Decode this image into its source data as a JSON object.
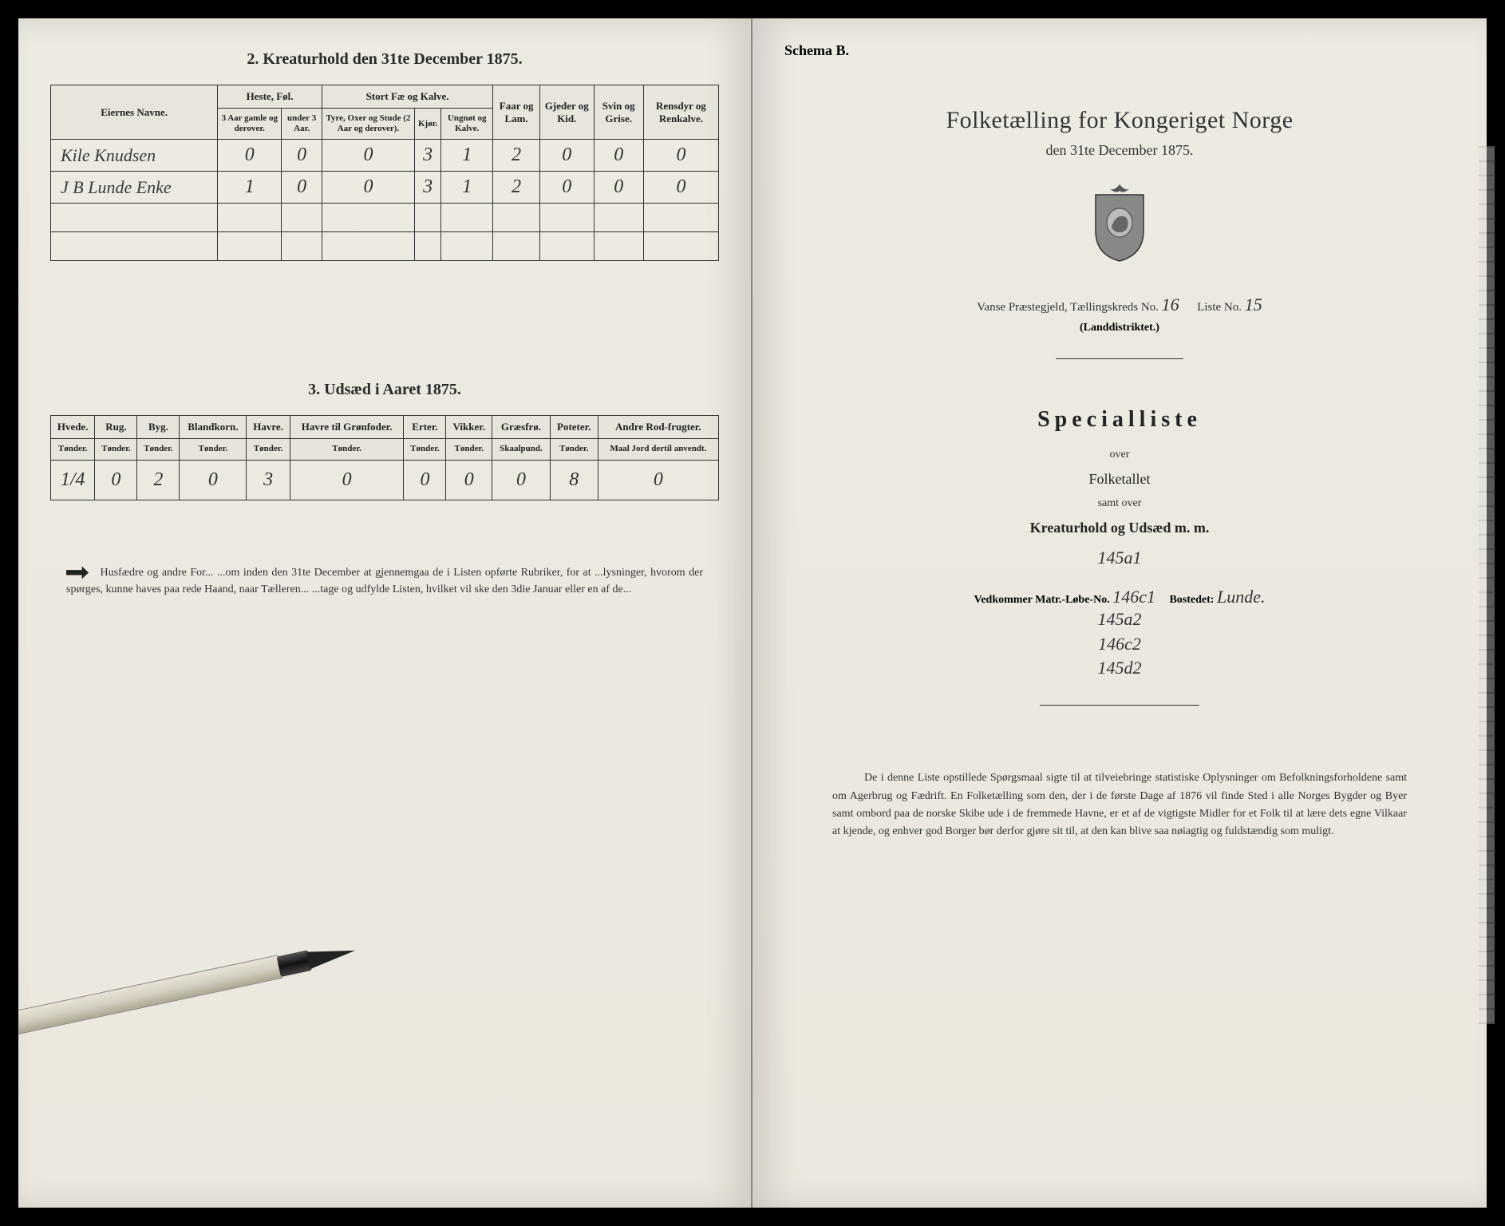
{
  "left": {
    "section2_title": "2. Kreaturhold den 31te December 1875.",
    "table2": {
      "headers": {
        "names": "Eiernes Navne.",
        "heste": "Heste, Føl.",
        "heste_sub1": "3 Aar gamle og derover.",
        "heste_sub2": "under 3 Aar.",
        "stort": "Stort Fæ og Kalve.",
        "stort_sub1": "Tyre, Oxer og Stude (2 Aar og derover).",
        "stort_sub2": "Kjør.",
        "stort_sub3": "Ungnøt og Kalve.",
        "faar": "Faar og Lam.",
        "gjeder": "Gjeder og Kid.",
        "svin": "Svin og Grise.",
        "rens": "Rensdyr og Renkalve."
      },
      "rows": [
        {
          "name": "Kile Knudsen",
          "v": [
            "0",
            "0",
            "0",
            "3",
            "1",
            "2",
            "0",
            "0",
            "0"
          ]
        },
        {
          "name": "J B Lunde Enke",
          "v": [
            "1",
            "0",
            "0",
            "3",
            "1",
            "2",
            "0",
            "0",
            "0"
          ]
        }
      ]
    },
    "section3_title": "3. Udsæd i Aaret 1875.",
    "table3": {
      "headers": [
        "Hvede.",
        "Rug.",
        "Byg.",
        "Blandkorn.",
        "Havre.",
        "Havre til Grønfoder.",
        "Erter.",
        "Vikker.",
        "Græsfrø.",
        "Poteter.",
        "Andre Rod-frugter."
      ],
      "subheaders": [
        "Tønder.",
        "Tønder.",
        "Tønder.",
        "Tønder.",
        "Tønder.",
        "Tønder.",
        "Tønder.",
        "Tønder.",
        "Skaalpund.",
        "Tønder.",
        "Maal Jord dertil anvendt."
      ],
      "row": [
        "1/4",
        "0",
        "2",
        "0",
        "3",
        "0",
        "0",
        "0",
        "0",
        "8",
        "0"
      ]
    },
    "footnote": "Husfædre og andre For... ...om inden den 31te December at gjennemgaa de i Listen opførte Rubriker, for at ...lysninger, hvorom der spørges, kunne haves paa rede Haand, naar Tælleren... ...tage og udfylde Listen, hvilket vil ske den 3die Januar eller en af de..."
  },
  "right": {
    "schema": "Schema B.",
    "main_title": "Folketælling for Kongeriget Norge",
    "date_line": "den 31te December 1875.",
    "prestegjelde_prefix": "Vanse Præstegjeld, Tællingskreds No.",
    "kreds_no": "16",
    "liste_label": "Liste No.",
    "liste_no": "15",
    "land": "(Landdistriktet.)",
    "special": "Specialliste",
    "over": "over",
    "folketallet": "Folketallet",
    "samt": "samt over",
    "kreatur": "Kreaturhold og Udsæd m. m.",
    "matr_label_pre": "Vedkommer Matr.-Løbe-No.",
    "matr_main": "146c1",
    "bostedet_label": "Bostedet:",
    "bostedet": "Lunde.",
    "matr_nums": [
      "145a1",
      "145a2",
      "146c2",
      "145d2"
    ],
    "footer": "De i denne Liste opstillede Spørgsmaal sigte til at tilveiebringe statistiske Oplysninger om Befolkningsforholdene samt om Agerbrug og Fædrift. En Folketælling som den, der i de første Dage af 1876 vil finde Sted i alle Norges Bygder og Byer samt ombord paa de norske Skibe ude i de fremmede Havne, er et af de vigtigste Midler for et Folk til at lære dets egne Vilkaar at kjende, og enhver god Borger bør derfor gjøre sit til, at den kan blive saa nøiagtig og fuldstændig som muligt."
  },
  "colors": {
    "page_bg": "#edeae2",
    "text": "#2a2a2a",
    "border": "#333333",
    "outer_bg": "#000000"
  }
}
